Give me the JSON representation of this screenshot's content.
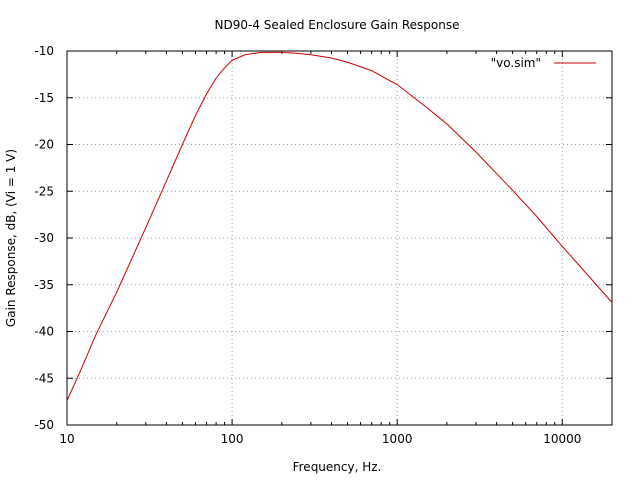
{
  "chart_data": {
    "type": "line",
    "title": "ND90-4 Sealed Enclosure Gain Response",
    "xlabel": "Frequency, Hz.",
    "ylabel": "Gain Response, dB, (Vi = 1 V)",
    "xscale": "log",
    "xlim": [
      10,
      20000
    ],
    "ylim": [
      -50,
      -10
    ],
    "x_ticks": [
      10,
      100,
      1000,
      10000
    ],
    "x_tick_labels": [
      "10",
      "100",
      "1000",
      "10000"
    ],
    "y_ticks": [
      -50,
      -45,
      -40,
      -35,
      -30,
      -25,
      -20,
      -15,
      -10
    ],
    "y_tick_labels": [
      "-50",
      "-45",
      "-40",
      "-35",
      "-30",
      "-25",
      "-20",
      "-15",
      "-10"
    ],
    "grid": true,
    "legend_position": "top-right",
    "series": [
      {
        "name": "\"vo.sim\"",
        "color": "#cc0000",
        "x": [
          10,
          12,
          15,
          20,
          25,
          30,
          40,
          50,
          60,
          70,
          80,
          90,
          100,
          120,
          150,
          200,
          250,
          300,
          400,
          500,
          700,
          1000,
          1500,
          2000,
          3000,
          5000,
          7000,
          10000,
          15000,
          20000
        ],
        "y": [
          -47.4,
          -44.3,
          -40.3,
          -35.8,
          -32.0,
          -28.9,
          -23.9,
          -20.0,
          -16.9,
          -14.6,
          -12.9,
          -11.8,
          -11.0,
          -10.4,
          -10.15,
          -10.15,
          -10.25,
          -10.4,
          -10.75,
          -11.2,
          -12.1,
          -13.6,
          -16.0,
          -17.8,
          -20.8,
          -24.9,
          -27.7,
          -30.9,
          -34.4,
          -36.9
        ]
      }
    ]
  }
}
